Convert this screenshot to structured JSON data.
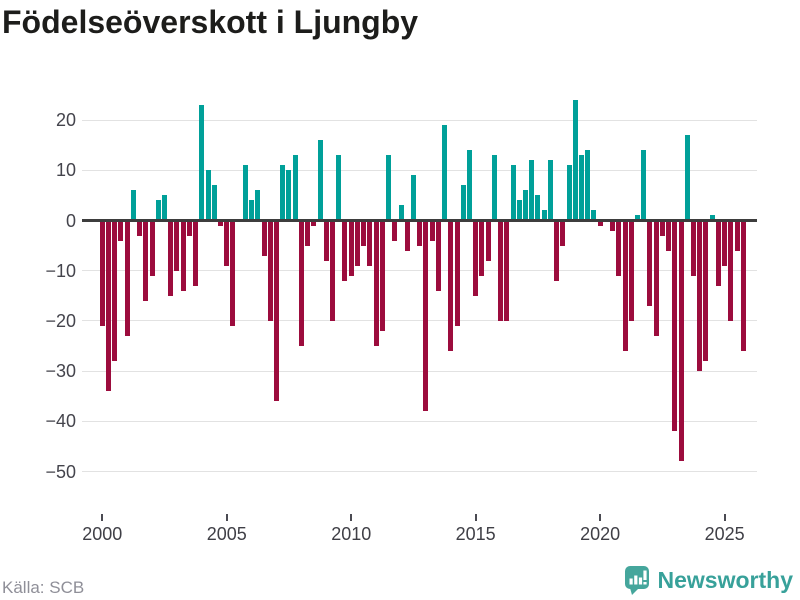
{
  "title": "Födelseöverskott i Ljungby",
  "source": "Källa: SCB",
  "logo_text": "Newsworthy",
  "colors": {
    "positive": "#00a099",
    "negative": "#9c0c3d",
    "axis": "#3d3d3d",
    "grid": "#e2e2e2",
    "labels": "#44444c",
    "title": "#1d1d1b",
    "source": "#8f8f98",
    "brand": "#38a19a"
  },
  "chart_data": {
    "type": "bar",
    "title": "Födelseöverskott i Ljungby",
    "xlabel": "",
    "ylabel": "",
    "ylim": [
      -50,
      24
    ],
    "grid": "horizontal",
    "y_ticks": [
      {
        "value": 20,
        "label": "20"
      },
      {
        "value": 10,
        "label": "10"
      },
      {
        "value": 0,
        "label": "0"
      },
      {
        "value": -10,
        "label": "−10"
      },
      {
        "value": -20,
        "label": "−20"
      },
      {
        "value": -30,
        "label": "−30"
      },
      {
        "value": -40,
        "label": "−40"
      },
      {
        "value": -50,
        "label": "−50"
      }
    ],
    "x_ticks": [
      {
        "year": 2000,
        "label": "2000"
      },
      {
        "year": 2005,
        "label": "2005"
      },
      {
        "year": 2010,
        "label": "2010"
      },
      {
        "year": 2015,
        "label": "2015"
      },
      {
        "year": 2020,
        "label": "2020"
      },
      {
        "year": 2025,
        "label": "2025"
      }
    ],
    "frequency": "quarterly",
    "series": [
      {
        "year": 2000,
        "values": [
          -21,
          -34,
          -28,
          -4
        ]
      },
      {
        "year": 2001,
        "values": [
          -23,
          6,
          -3,
          -16
        ]
      },
      {
        "year": 2002,
        "values": [
          -11,
          4,
          5,
          -15
        ]
      },
      {
        "year": 2003,
        "values": [
          -10,
          -14,
          -3,
          -13
        ]
      },
      {
        "year": 2004,
        "values": [
          23,
          10,
          7,
          -1
        ]
      },
      {
        "year": 2005,
        "values": [
          -9,
          -21,
          0,
          11
        ]
      },
      {
        "year": 2006,
        "values": [
          4,
          6,
          -7,
          -20
        ]
      },
      {
        "year": 2007,
        "values": [
          -36,
          11,
          10,
          13
        ]
      },
      {
        "year": 2008,
        "values": [
          -25,
          -5,
          -1,
          16
        ]
      },
      {
        "year": 2009,
        "values": [
          -8,
          -20,
          13,
          -12
        ]
      },
      {
        "year": 2010,
        "values": [
          -11,
          -9,
          -5,
          -9
        ]
      },
      {
        "year": 2011,
        "values": [
          -25,
          -22,
          13,
          -4
        ]
      },
      {
        "year": 2012,
        "values": [
          3,
          -6,
          9,
          -5
        ]
      },
      {
        "year": 2013,
        "values": [
          -38,
          -4,
          -14,
          19
        ]
      },
      {
        "year": 2014,
        "values": [
          -26,
          -21,
          7,
          14
        ]
      },
      {
        "year": 2015,
        "values": [
          -15,
          -11,
          -8,
          13
        ]
      },
      {
        "year": 2016,
        "values": [
          -20,
          -20,
          11,
          4
        ]
      },
      {
        "year": 2017,
        "values": [
          6,
          12,
          5,
          2
        ]
      },
      {
        "year": 2018,
        "values": [
          12,
          -12,
          -5,
          11
        ]
      },
      {
        "year": 2019,
        "values": [
          24,
          13,
          14,
          2
        ]
      },
      {
        "year": 2020,
        "values": [
          -1,
          0,
          -2,
          -11
        ]
      },
      {
        "year": 2021,
        "values": [
          -26,
          -20,
          1,
          14
        ]
      },
      {
        "year": 2022,
        "values": [
          -17,
          -23,
          -3,
          -6
        ]
      },
      {
        "year": 2023,
        "values": [
          -42,
          -48,
          17,
          -11
        ]
      },
      {
        "year": 2024,
        "values": [
          -30,
          -28,
          1,
          -13
        ]
      },
      {
        "year": 2025,
        "values": [
          -9,
          -20,
          -6,
          -26
        ]
      }
    ]
  }
}
